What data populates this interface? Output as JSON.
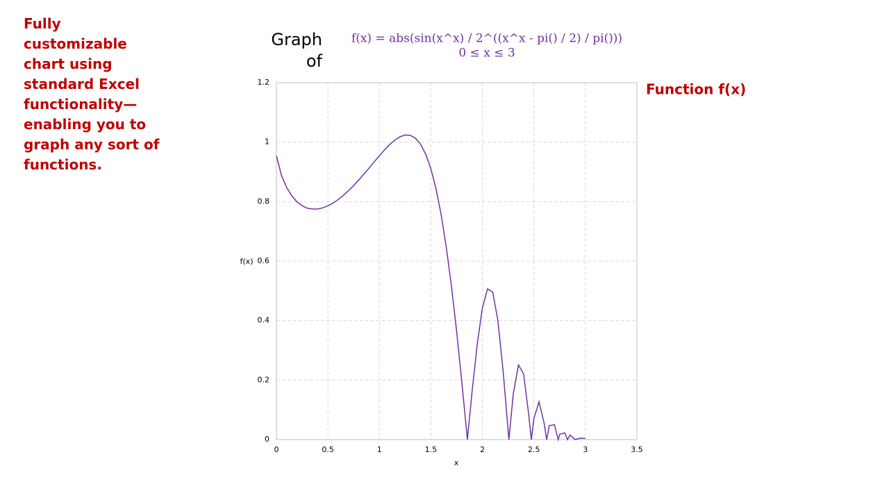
{
  "side_text": "Fully customizable chart using standard Excel functionality—enabling you to graph any sort of functions.",
  "chart_data": {
    "type": "line",
    "title": "Graph of",
    "subtitle": [
      "f(x) = abs(sin(x^x) / 2^((x^x - pi() / 2) / pi()))",
      "0 ≤ x ≤ 3"
    ],
    "x_label": "x",
    "y_label": "f(x)",
    "x": [
      0,
      0.05,
      0.1,
      0.15,
      0.2,
      0.25,
      0.3,
      0.35,
      0.4,
      0.45,
      0.5,
      0.55,
      0.6,
      0.65,
      0.7,
      0.75,
      0.8,
      0.85,
      0.9,
      0.95,
      1,
      1.05,
      1.1,
      1.15,
      1.2,
      1.25,
      1.3,
      1.35,
      1.4,
      1.45,
      1.5,
      1.55,
      1.6,
      1.65,
      1.7,
      1.75,
      1.8,
      1.85,
      1.854,
      1.9,
      1.95,
      2,
      2.05,
      2.1,
      2.15,
      2.2,
      2.25,
      2.257,
      2.3,
      2.35,
      2.4,
      2.45,
      2.475,
      2.5,
      2.55,
      2.6,
      2.624,
      2.65,
      2.7,
      2.736,
      2.75,
      2.8,
      2.826,
      2.85,
      2.901,
      2.95,
      3
    ],
    "series": [
      {
        "name": "Function f(x)",
        "color": "#7030a0",
        "values": [
          0.954,
          0.887,
          0.847,
          0.819,
          0.799,
          0.786,
          0.778,
          0.775,
          0.775,
          0.779,
          0.786,
          0.795,
          0.807,
          0.821,
          0.837,
          0.854,
          0.873,
          0.893,
          0.913,
          0.934,
          0.954,
          0.974,
          0.992,
          1.007,
          1.018,
          1.024,
          1.023,
          1.013,
          0.993,
          0.959,
          0.91,
          0.843,
          0.755,
          0.645,
          0.514,
          0.363,
          0.194,
          0.015,
          0,
          0.162,
          0.321,
          0.443,
          0.507,
          0.496,
          0.401,
          0.235,
          0.03,
          0,
          0.154,
          0.251,
          0.221,
          0.083,
          0,
          0.071,
          0.127,
          0.054,
          0,
          0.047,
          0.05,
          0,
          0.017,
          0.023,
          0,
          0.015,
          0,
          0.005,
          0.004
        ]
      }
    ],
    "xlim": [
      0,
      3.5
    ],
    "xticks": [
      0,
      0.5,
      1,
      1.5,
      2,
      2.5,
      3,
      3.5
    ],
    "ylim": [
      0,
      1.2
    ],
    "yticks": [
      0,
      0.2,
      0.4,
      0.6,
      0.8,
      1,
      1.2
    ],
    "grid": true
  }
}
